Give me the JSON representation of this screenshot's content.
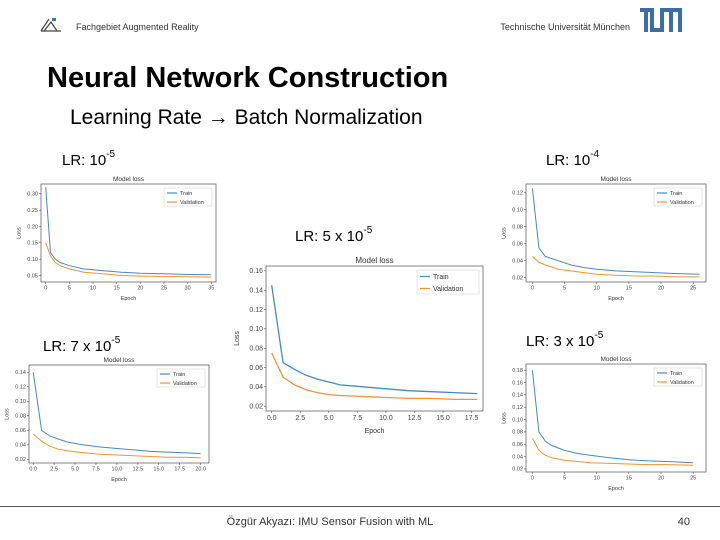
{
  "header": {
    "left_text": "Fachgebiet Augmented Reality",
    "right_text": "Technische Universität München"
  },
  "slide": {
    "title": "Neural Network Construction",
    "subtitle": "Learning Rate → Batch Normalization"
  },
  "footer": {
    "text": "Özgür Akyazı: IMU Sensor Fusion with ML",
    "page_number": "40"
  },
  "colors": {
    "train": "#4a87bf",
    "validation": "#f0933a",
    "grid_text": "#444444"
  },
  "chart_data": [
    {
      "label_base": "LR: 10",
      "label_exp": "-5",
      "type": "line",
      "title": "Model loss",
      "xlabel": "Epoch",
      "ylabel": "Loss",
      "legend": "top-right",
      "legend_entries": [
        "Train",
        "Validation"
      ],
      "xticks": [
        0,
        5,
        10,
        15,
        20,
        25,
        30,
        35
      ],
      "xlim": [
        -1,
        36
      ],
      "yticks": [
        0.05,
        0.1,
        0.15,
        0.2,
        0.25,
        0.3
      ],
      "ytick_labels": [
        "0.05",
        "0.10",
        "0.15",
        "0.20",
        "0.25",
        "0.30"
      ],
      "ylim": [
        0.03,
        0.33
      ],
      "series": [
        {
          "name": "Train",
          "x": [
            0,
            1,
            2,
            3,
            5,
            8,
            12,
            16,
            20,
            25,
            30,
            35
          ],
          "y": [
            0.32,
            0.12,
            0.1,
            0.09,
            0.08,
            0.07,
            0.065,
            0.06,
            0.057,
            0.055,
            0.053,
            0.052
          ]
        },
        {
          "name": "Validation",
          "x": [
            0,
            1,
            2,
            3,
            5,
            8,
            12,
            16,
            20,
            25,
            30,
            35
          ],
          "y": [
            0.15,
            0.11,
            0.09,
            0.08,
            0.07,
            0.06,
            0.055,
            0.05,
            0.048,
            0.047,
            0.046,
            0.045
          ]
        }
      ]
    },
    {
      "label_base": "LR: 10",
      "label_exp": "-4",
      "type": "line",
      "title": "Model loss",
      "xlabel": "Epoch",
      "ylabel": "Loss",
      "legend": "top-right",
      "legend_entries": [
        "Train",
        "Validation"
      ],
      "xticks": [
        0,
        5,
        10,
        15,
        20,
        25
      ],
      "xlim": [
        -1,
        27
      ],
      "yticks": [
        0.02,
        0.04,
        0.06,
        0.08,
        0.1,
        0.12
      ],
      "ytick_labels": [
        "0.02",
        "0.04",
        "0.06",
        "0.08",
        "0.10",
        "0.12"
      ],
      "ylim": [
        0.015,
        0.13
      ],
      "series": [
        {
          "name": "Train",
          "x": [
            0,
            1,
            2,
            4,
            6,
            8,
            10,
            13,
            16,
            19,
            22,
            26
          ],
          "y": [
            0.125,
            0.055,
            0.045,
            0.04,
            0.035,
            0.032,
            0.03,
            0.028,
            0.027,
            0.026,
            0.025,
            0.024
          ]
        },
        {
          "name": "Validation",
          "x": [
            0,
            1,
            2,
            4,
            6,
            8,
            10,
            13,
            16,
            19,
            22,
            26
          ],
          "y": [
            0.045,
            0.038,
            0.035,
            0.03,
            0.028,
            0.026,
            0.024,
            0.023,
            0.022,
            0.022,
            0.021,
            0.021
          ]
        }
      ]
    },
    {
      "label_base": "LR: 5 x 10",
      "label_exp": "-5",
      "type": "line",
      "title": "Model loss",
      "xlabel": "Epoch",
      "ylabel": "Loss",
      "legend": "top-right",
      "legend_entries": [
        "Train",
        "Validation"
      ],
      "xticks": [
        0,
        2.5,
        5.0,
        7.5,
        10.0,
        12.5,
        15.0,
        17.5
      ],
      "xtick_labels": [
        "0.0",
        "2.5",
        "5.0",
        "7.5",
        "10.0",
        "12.5",
        "15.0",
        "17.5"
      ],
      "xlim": [
        -0.5,
        18.5
      ],
      "yticks": [
        0.02,
        0.04,
        0.06,
        0.08,
        0.1,
        0.12,
        0.14,
        0.16
      ],
      "ytick_labels": [
        "0.02",
        "0.04",
        "0.06",
        "0.08",
        "0.10",
        "0.12",
        "0.14",
        "0.16"
      ],
      "ylim": [
        0.015,
        0.165
      ],
      "series": [
        {
          "name": "Train",
          "x": [
            0,
            1,
            2,
            3,
            4,
            5,
            6,
            8,
            10,
            12,
            14,
            16,
            18
          ],
          "y": [
            0.145,
            0.065,
            0.058,
            0.052,
            0.048,
            0.045,
            0.042,
            0.04,
            0.038,
            0.036,
            0.035,
            0.034,
            0.033
          ]
        },
        {
          "name": "Validation",
          "x": [
            0,
            1,
            2,
            3,
            4,
            5,
            6,
            8,
            10,
            12,
            14,
            16,
            18
          ],
          "y": [
            0.075,
            0.05,
            0.042,
            0.037,
            0.034,
            0.032,
            0.031,
            0.03,
            0.029,
            0.028,
            0.028,
            0.027,
            0.027
          ]
        }
      ]
    },
    {
      "label_base": "LR: 7 x 10",
      "label_exp": "-5",
      "type": "line",
      "title": "Model loss",
      "xlabel": "Epoch",
      "ylabel": "Loss",
      "legend": "top-right",
      "legend_entries": [
        "Train",
        "Validation"
      ],
      "xticks": [
        0,
        2.5,
        5.0,
        7.5,
        10.0,
        12.5,
        15.0,
        17.5,
        20.0
      ],
      "xtick_labels": [
        "0.0",
        "2.5",
        "5.0",
        "7.5",
        "10.0",
        "12.5",
        "15.0",
        "17.5",
        "20.0"
      ],
      "xlim": [
        -0.5,
        21
      ],
      "yticks": [
        0.02,
        0.04,
        0.06,
        0.08,
        0.1,
        0.12,
        0.14
      ],
      "ytick_labels": [
        "0.02",
        "0.04",
        "0.06",
        "0.08",
        "0.10",
        "0.12",
        "0.14"
      ],
      "ylim": [
        0.015,
        0.15
      ],
      "series": [
        {
          "name": "Train",
          "x": [
            0,
            1,
            2,
            3,
            4,
            6,
            8,
            10,
            12,
            14,
            16,
            18,
            20
          ],
          "y": [
            0.14,
            0.06,
            0.052,
            0.048,
            0.044,
            0.04,
            0.037,
            0.035,
            0.033,
            0.031,
            0.03,
            0.029,
            0.028
          ]
        },
        {
          "name": "Validation",
          "x": [
            0,
            1,
            2,
            3,
            4,
            6,
            8,
            10,
            12,
            14,
            16,
            18,
            20
          ],
          "y": [
            0.055,
            0.045,
            0.038,
            0.034,
            0.032,
            0.029,
            0.027,
            0.026,
            0.025,
            0.024,
            0.023,
            0.023,
            0.022
          ]
        }
      ]
    },
    {
      "label_base": "LR: 3 x 10",
      "label_exp": "-5",
      "type": "line",
      "title": "Model loss",
      "xlabel": "Epoch",
      "ylabel": "Loss",
      "legend": "top-right",
      "legend_entries": [
        "Train",
        "Validation"
      ],
      "xticks": [
        0,
        5,
        10,
        15,
        20,
        25
      ],
      "xlim": [
        -1,
        27
      ],
      "yticks": [
        0.02,
        0.04,
        0.06,
        0.08,
        0.1,
        0.12,
        0.14,
        0.16,
        0.18
      ],
      "ytick_labels": [
        "0.02",
        "0.04",
        "0.06",
        "0.08",
        "0.10",
        "0.12",
        "0.14",
        "0.16",
        "0.18"
      ],
      "ylim": [
        0.015,
        0.19
      ],
      "series": [
        {
          "name": "Train",
          "x": [
            0,
            1,
            2,
            3,
            5,
            7,
            9,
            12,
            15,
            18,
            21,
            25
          ],
          "y": [
            0.18,
            0.08,
            0.065,
            0.058,
            0.05,
            0.045,
            0.042,
            0.038,
            0.035,
            0.033,
            0.032,
            0.03
          ]
        },
        {
          "name": "Validation",
          "x": [
            0,
            1,
            2,
            3,
            5,
            7,
            9,
            12,
            15,
            18,
            21,
            25
          ],
          "y": [
            0.07,
            0.05,
            0.042,
            0.038,
            0.034,
            0.032,
            0.03,
            0.029,
            0.028,
            0.027,
            0.027,
            0.026
          ]
        }
      ]
    }
  ]
}
